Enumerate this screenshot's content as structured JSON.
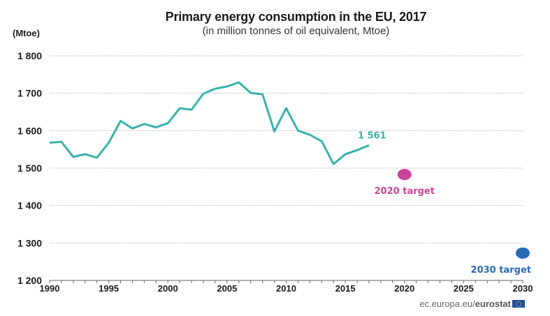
{
  "chart_data": {
    "type": "line",
    "title": "Primary energy consumption in the EU, 2017",
    "subtitle": "(in million tonnes of oil equivalent, Mtoe)",
    "ylabel": "(Mtoe)",
    "xlabel": "",
    "ylim": [
      1200,
      1800
    ],
    "xlim": [
      1990,
      2030
    ],
    "grid": true,
    "yticks": [
      1200,
      1300,
      1400,
      1500,
      1600,
      1700,
      1800
    ],
    "ytick_labels": [
      "1 200",
      "1 300",
      "1 400",
      "1 500",
      "1 600",
      "1 700",
      "1 800"
    ],
    "xticks": [
      1990,
      1995,
      2000,
      2005,
      2010,
      2015,
      2020,
      2025,
      2030
    ],
    "xtick_labels": [
      "1990",
      "1995",
      "2000",
      "2005",
      "2010",
      "2015",
      "2020",
      "2025",
      "2030"
    ],
    "series": [
      {
        "name": "Primary energy consumption",
        "color": "#38b2ac",
        "x": [
          1990,
          1991,
          1992,
          1993,
          1994,
          1995,
          1996,
          1997,
          1998,
          1999,
          2000,
          2001,
          2002,
          2003,
          2004,
          2005,
          2006,
          2007,
          2008,
          2009,
          2010,
          2011,
          2012,
          2013,
          2014,
          2015,
          2016,
          2017
        ],
        "values": [
          1568,
          1570,
          1530,
          1537,
          1528,
          1568,
          1626,
          1606,
          1618,
          1609,
          1620,
          1660,
          1656,
          1699,
          1712,
          1718,
          1729,
          1701,
          1697,
          1598,
          1660,
          1600,
          1589,
          1572,
          1511,
          1537,
          1548,
          1561
        ]
      }
    ],
    "end_label": "1 561",
    "targets": [
      {
        "name": "2020 target",
        "label": "2020 target",
        "x": 2020,
        "value": 1483,
        "color": "#c9459a"
      },
      {
        "name": "2030 target",
        "label": "2030 target",
        "x": 2030,
        "value": 1273,
        "color": "#2a6ab5"
      }
    ]
  },
  "source": {
    "prefix": "ec.europa.eu/",
    "brand": "eurostat"
  }
}
